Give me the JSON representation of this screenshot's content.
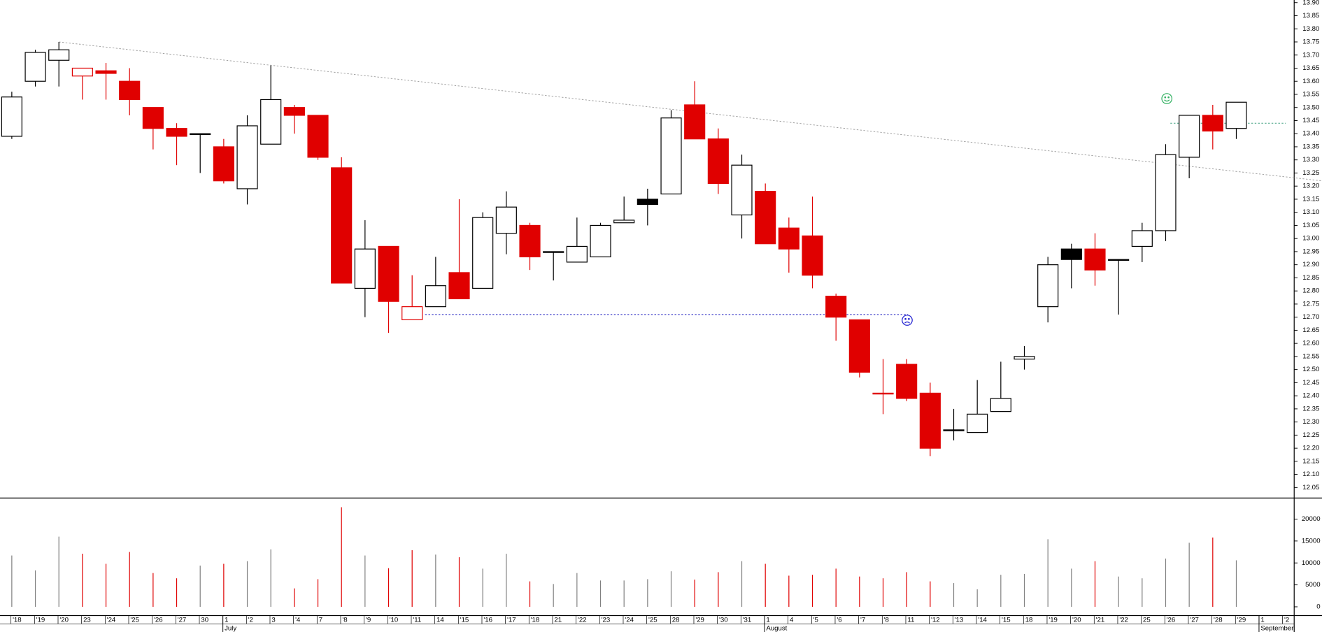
{
  "chart_data": {
    "type": "candlestick",
    "categories": [
      "'18",
      "'19",
      "'20",
      "23",
      "'24",
      "'25",
      "'26",
      "'27",
      "30",
      "1",
      "'2",
      "3",
      "'4",
      "7",
      "'8",
      "'9",
      "'10",
      "'11",
      "14",
      "'15",
      "'16",
      "'17",
      "'18",
      "21",
      "'22",
      "'23",
      "'24",
      "'25",
      "28",
      "'29",
      "'30",
      "'31",
      "1",
      "4",
      "'5",
      "'6",
      "'7",
      "'8",
      "11",
      "'12",
      "'13",
      "'14",
      "'15",
      "18",
      "'19",
      "'20",
      "'21",
      "'22",
      "25",
      "'26",
      "'27",
      "'28",
      "'29",
      "1",
      "'2"
    ],
    "months": [
      "July",
      "August",
      "September"
    ],
    "month_starts": [
      9,
      32,
      53
    ],
    "open": [
      13.39,
      13.6,
      13.68,
      13.62,
      13.64,
      13.6,
      13.5,
      13.42,
      13.4,
      13.35,
      13.19,
      13.36,
      13.5,
      13.47,
      13.27,
      12.81,
      12.97,
      12.69,
      12.74,
      12.87,
      12.81,
      13.02,
      13.05,
      12.95,
      12.91,
      12.93,
      13.06,
      13.15,
      13.17,
      13.51,
      13.38,
      13.09,
      13.18,
      13.04,
      13.01,
      12.78,
      12.69,
      12.41,
      12.52,
      12.41,
      12.27,
      12.26,
      12.34,
      12.54,
      12.74,
      12.92,
      12.96,
      12.92,
      12.97,
      13.03,
      13.31,
      13.47,
      13.42,
      null,
      null
    ],
    "high": [
      13.56,
      13.72,
      13.75,
      13.65,
      13.67,
      13.65,
      13.5,
      13.44,
      13.4,
      13.38,
      13.47,
      13.66,
      13.51,
      13.47,
      13.31,
      13.07,
      12.97,
      12.86,
      12.93,
      13.15,
      13.1,
      13.18,
      13.06,
      12.95,
      13.08,
      13.06,
      13.16,
      13.19,
      13.49,
      13.6,
      13.42,
      13.32,
      13.21,
      13.08,
      13.16,
      12.79,
      12.69,
      12.54,
      12.54,
      12.45,
      12.35,
      12.46,
      12.53,
      12.59,
      12.93,
      12.98,
      13.02,
      12.92,
      13.06,
      13.36,
      13.47,
      13.51,
      13.52,
      null,
      null
    ],
    "low": [
      13.38,
      13.58,
      13.58,
      13.53,
      13.53,
      13.47,
      13.34,
      13.28,
      13.25,
      13.21,
      13.13,
      13.36,
      13.4,
      13.3,
      12.83,
      12.7,
      12.64,
      12.69,
      12.74,
      12.77,
      12.81,
      12.94,
      12.88,
      12.84,
      12.91,
      12.93,
      13.06,
      13.05,
      13.17,
      13.38,
      13.17,
      13.0,
      12.98,
      12.87,
      12.81,
      12.61,
      12.47,
      12.33,
      12.38,
      12.17,
      12.23,
      12.26,
      12.34,
      12.5,
      12.68,
      12.81,
      12.82,
      12.71,
      12.91,
      12.99,
      13.23,
      13.34,
      13.38,
      null,
      null
    ],
    "close": [
      13.54,
      13.71,
      13.72,
      13.65,
      13.63,
      13.53,
      13.42,
      13.39,
      13.4,
      13.22,
      13.43,
      13.53,
      13.47,
      13.31,
      12.83,
      12.96,
      12.76,
      12.74,
      12.82,
      12.77,
      13.08,
      13.12,
      12.93,
      12.95,
      12.97,
      13.05,
      13.07,
      13.13,
      13.46,
      13.38,
      13.21,
      13.28,
      12.98,
      12.96,
      12.86,
      12.7,
      12.49,
      12.41,
      12.39,
      12.2,
      12.27,
      12.33,
      12.39,
      12.55,
      12.9,
      12.96,
      12.88,
      12.92,
      13.03,
      13.32,
      13.47,
      13.41,
      13.52,
      null,
      null
    ],
    "body_colors": [
      "#ffffff",
      "#ffffff",
      "#ffffff",
      "#ffffff",
      "#e00000",
      "#e00000",
      "#e00000",
      "#e00000",
      "#ffffff",
      "#e00000",
      "#ffffff",
      "#ffffff",
      "#e00000",
      "#e00000",
      "#e00000",
      "#ffffff",
      "#e00000",
      "#ffffff",
      "#ffffff",
      "#e00000",
      "#ffffff",
      "#ffffff",
      "#e00000",
      "#ffffff",
      "#ffffff",
      "#ffffff",
      "#ffffff",
      "#000000",
      "#ffffff",
      "#e00000",
      "#e00000",
      "#ffffff",
      "#e00000",
      "#e00000",
      "#e00000",
      "#e00000",
      "#e00000",
      "#ffffff",
      "#e00000",
      "#e00000",
      "#ffffff",
      "#ffffff",
      "#ffffff",
      "#ffffff",
      "#ffffff",
      "#000000",
      "#e00000",
      "#ffffff",
      "#ffffff",
      "#ffffff",
      "#ffffff",
      "#e00000",
      "#ffffff",
      null,
      null
    ],
    "edge_colors": [
      "#000000",
      "#000000",
      "#000000",
      "#e00000",
      "#e00000",
      "#e00000",
      "#e00000",
      "#e00000",
      "#000000",
      "#e00000",
      "#000000",
      "#000000",
      "#e00000",
      "#e00000",
      "#e00000",
      "#000000",
      "#e00000",
      "#e00000",
      "#000000",
      "#e00000",
      "#000000",
      "#000000",
      "#e00000",
      "#000000",
      "#000000",
      "#000000",
      "#000000",
      "#000000",
      "#000000",
      "#e00000",
      "#e00000",
      "#000000",
      "#e00000",
      "#e00000",
      "#e00000",
      "#e00000",
      "#e00000",
      "#e00000",
      "#e00000",
      "#e00000",
      "#000000",
      "#000000",
      "#000000",
      "#000000",
      "#000000",
      "#000000",
      "#e00000",
      "#000000",
      "#000000",
      "#000000",
      "#000000",
      "#e00000",
      "#000000",
      null,
      null
    ],
    "ylim": [
      12.01,
      13.91
    ],
    "yticks": [
      12.05,
      {
        "value": 12.1,
        "label": "12.10"
      },
      12.15,
      {
        "value": 12.2,
        "label": "12.20"
      },
      12.25,
      {
        "value": 12.3,
        "label": "12.30"
      },
      12.35,
      {
        "value": 12.4,
        "label": "12.40"
      },
      12.45,
      {
        "value": 12.5,
        "label": "12.50"
      },
      12.55,
      {
        "value": 12.6,
        "label": "12.60"
      },
      12.65,
      {
        "value": 12.7,
        "label": "12.70"
      },
      12.75,
      {
        "value": 12.8,
        "label": "12.80"
      },
      12.85,
      {
        "value": 12.9,
        "label": "12.90"
      },
      12.95,
      {
        "value": 13,
        "label": "13.00"
      },
      13.05,
      {
        "value": 13.1,
        "label": "13.10"
      },
      13.15,
      {
        "value": 13.2,
        "label": "13.20"
      },
      13.25,
      {
        "value": 13.3,
        "label": "13.30"
      },
      13.35,
      {
        "value": 13.4,
        "label": "13.40"
      },
      13.45,
      {
        "value": 13.5,
        "label": "13.50"
      },
      13.55,
      {
        "value": 13.6,
        "label": "13.60"
      },
      13.65,
      {
        "value": 13.7,
        "label": "13.70"
      },
      13.75,
      {
        "value": 13.8,
        "label": "13.80"
      },
      13.85,
      {
        "value": 13.9,
        "label": "13.90"
      }
    ],
    "reference_lines": [
      {
        "from": 2,
        "to": 55.64,
        "values": [
          13.75,
          13.22
        ],
        "color": "#a0a0a0"
      },
      {
        "from": 17.55,
        "to": 38.06,
        "values": [
          12.71,
          12.71
        ],
        "color": "#2020c0"
      },
      {
        "from": 49.2,
        "to": 54.1,
        "values": [
          13.44,
          13.44
        ],
        "color": "#40a080"
      }
    ],
    "volume": {
      "values": [
        11700,
        8300,
        16000,
        12100,
        9800,
        12500,
        7700,
        6500,
        9400,
        9800,
        10400,
        13100,
        4200,
        6300,
        22700,
        11700,
        8800,
        12900,
        11900,
        11300,
        8700,
        12100,
        5800,
        5200,
        7700,
        6000,
        6000,
        6300,
        8100,
        6200,
        7900,
        10400,
        9800,
        7100,
        7300,
        8700,
        6900,
        6500,
        7900,
        5800,
        5400,
        4000,
        7300,
        7500,
        15400,
        8700,
        10400,
        6900,
        6500,
        11000,
        14600,
        15800,
        10600,
        null,
        null
      ],
      "color": "#808080",
      "ylim": [
        -1900,
        24800
      ],
      "yticks": [
        0,
        5000,
        10000,
        15000,
        20000
      ]
    }
  }
}
